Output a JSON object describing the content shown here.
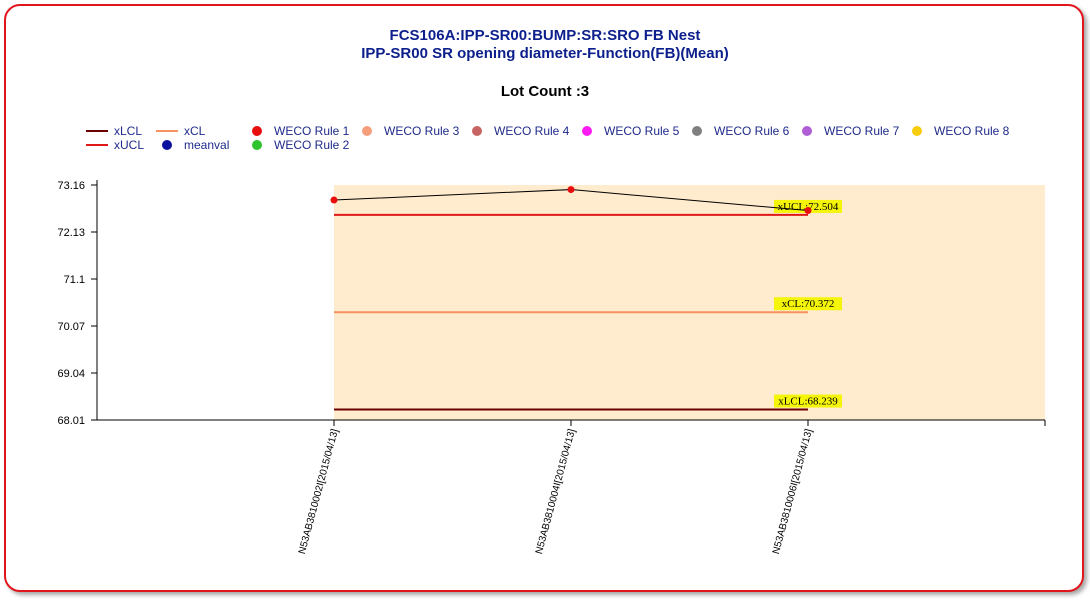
{
  "title_line1": "FCS106A:IPP-SR00:BUMP:SR:SRO FB Nest",
  "title_line2": "IPP-SR00 SR opening diameter-Function(FB)(Mean)",
  "lot_count": "Lot Count :3",
  "legend": [
    {
      "label": "xLCL",
      "kind": "line",
      "color": "#6b0000"
    },
    {
      "label": "xCL",
      "kind": "line",
      "color": "#f5925e"
    },
    {
      "label": "WECO Rule 1",
      "kind": "dot",
      "color": "#e80e0e"
    },
    {
      "label": "WECO Rule 3",
      "kind": "dot",
      "color": "#f4a07c"
    },
    {
      "label": "WECO Rule 4",
      "kind": "dot",
      "color": "#c86464"
    },
    {
      "label": "WECO Rule 5",
      "kind": "dot",
      "color": "#ff1cf2"
    },
    {
      "label": "WECO Rule 6",
      "kind": "dot",
      "color": "#808080"
    },
    {
      "label": "WECO Rule 7",
      "kind": "dot",
      "color": "#b05ed6"
    },
    {
      "label": "WECO Rule 8",
      "kind": "dot",
      "color": "#f7cc0a"
    },
    {
      "label": "xUCL",
      "kind": "line",
      "color": "#e01818"
    },
    {
      "label": "meanval",
      "kind": "dot",
      "color": "#0c12a0"
    },
    {
      "label": "WECO Rule 2",
      "kind": "dot",
      "color": "#2ec42e"
    }
  ],
  "chart_data": {
    "type": "line",
    "categories": [
      "N53AB3810002I[2015/04/13]",
      "N53AB3810004I[2015/04/13]",
      "N53AB3810006I[2015/04/13]"
    ],
    "series": [
      {
        "name": "meanval",
        "values": [
          72.83,
          73.06,
          72.6
        ],
        "color": "#000000",
        "point_color": "#e80e0e"
      }
    ],
    "limits": {
      "xUCL": {
        "value": 72.504,
        "label": "xUCL:72.504",
        "color": "#e01818"
      },
      "xCL": {
        "value": 70.372,
        "label": "xCL:70.372",
        "color": "#f5925e"
      },
      "xLCL": {
        "value": 68.239,
        "label": "xLCL:68.239",
        "color": "#6b0000"
      }
    },
    "y_ticks": [
      "68.01",
      "69.04",
      "70.07",
      "71.1",
      "72.13",
      "73.16"
    ],
    "ylim": [
      68.01,
      73.16
    ],
    "band_color": "#ffebcd",
    "label_bg": "#f5f50a",
    "grid": false,
    "legend_position": "top"
  }
}
